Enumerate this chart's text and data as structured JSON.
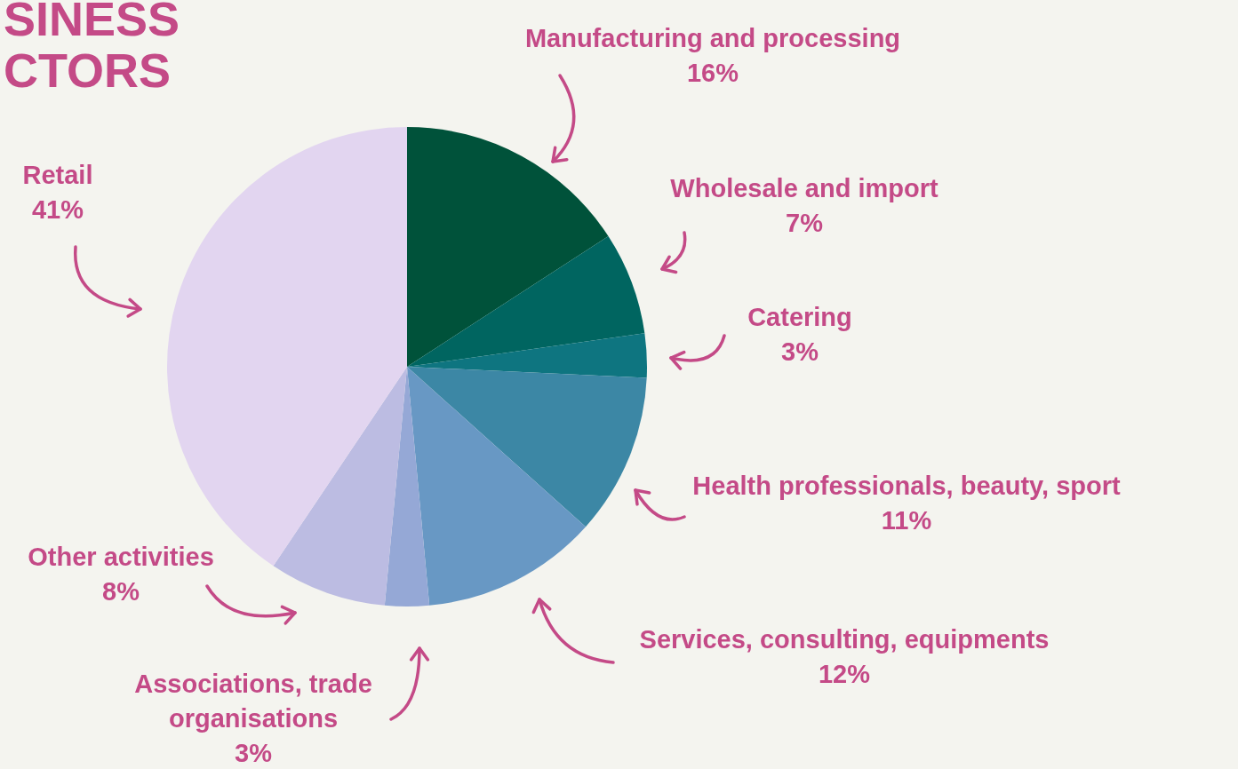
{
  "chart_data": {
    "type": "pie",
    "title": "SINESS CTORS",
    "categories": [
      "Manufacturing and processing",
      "Wholesale and import",
      "Catering",
      "Health professionals, beauty, sport",
      "Services, consulting, equipments",
      "Associations, trade organisations",
      "Other activities",
      "Retail"
    ],
    "values": [
      16,
      7,
      3,
      11,
      12,
      3,
      8,
      41
    ],
    "value_labels": [
      "16%",
      "7%",
      "3%",
      "11%",
      "12%",
      "3%",
      "8%",
      "41%"
    ],
    "colors": [
      "#00523a",
      "#006560",
      "#0e7580",
      "#3c87a5",
      "#6898c4",
      "#95a8d6",
      "#bcbce2",
      "#e2d5f0"
    ]
  }
}
